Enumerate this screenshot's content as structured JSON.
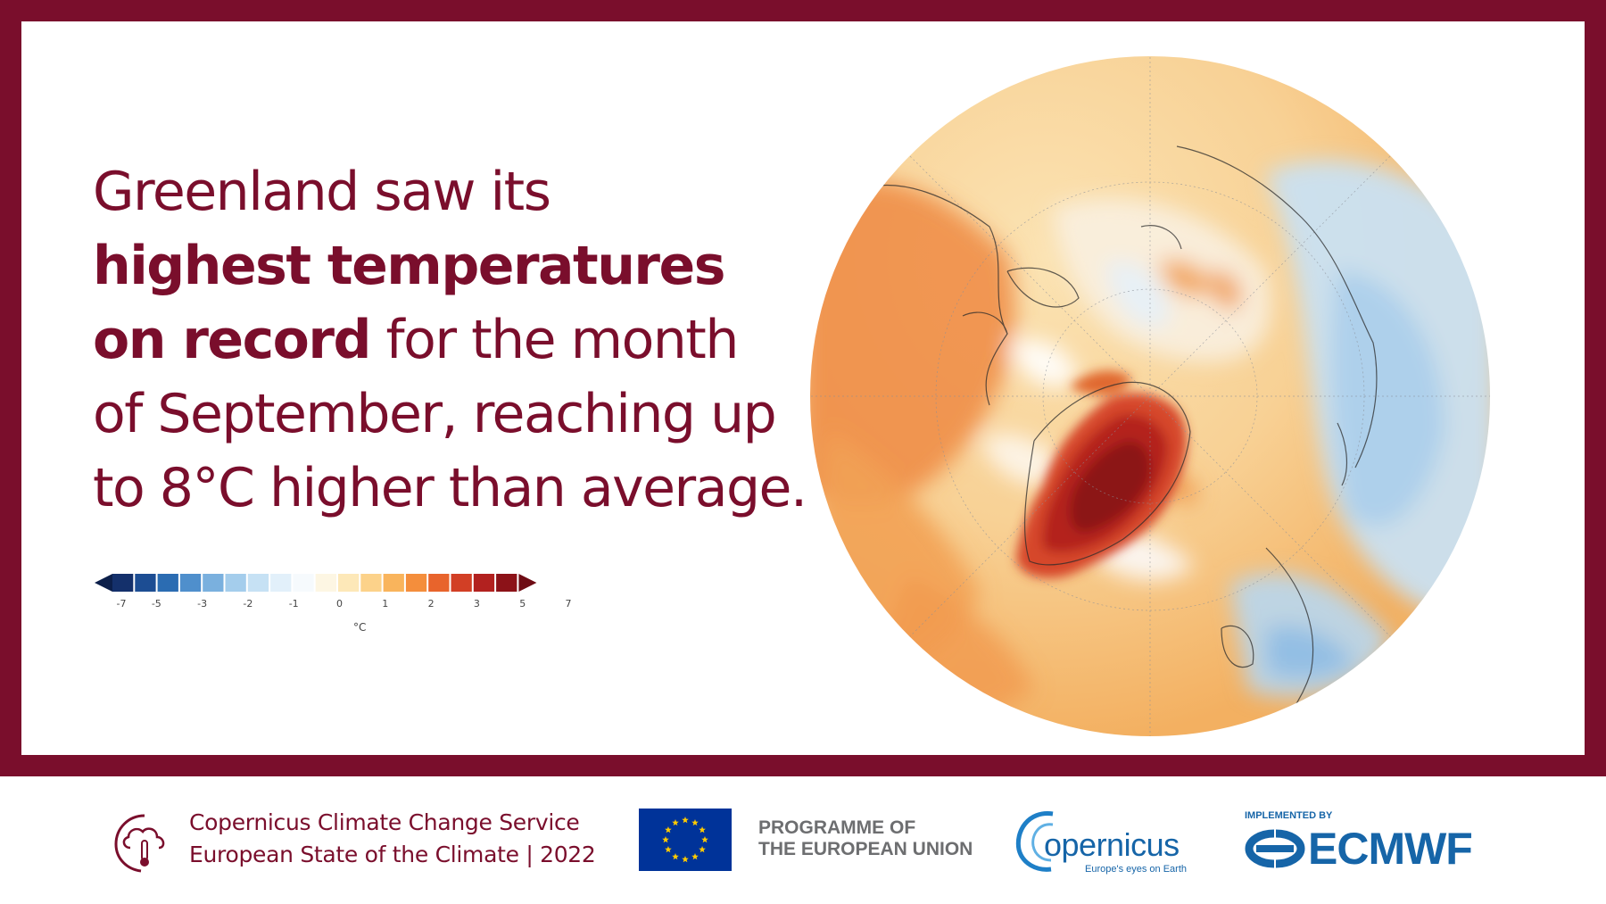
{
  "headline": {
    "line1": "Greenland saw its",
    "bold_line2": "highest temperatures",
    "bold_line3": "on record",
    "line3_rest": " for the month",
    "line4": "of September, reaching up",
    "line5": "to 8°C higher than average."
  },
  "legend": {
    "tick_labels": [
      "-7",
      "-5",
      "-3",
      "-2",
      "-1",
      "0",
      "1",
      "2",
      "3",
      "5",
      "7"
    ],
    "unit": "°C",
    "colors": [
      "#14306b",
      "#1c4d93",
      "#2b6cb2",
      "#4f8fcc",
      "#7ab0de",
      "#a4cdec",
      "#c6e1f4",
      "#e2f0fa",
      "#f6fafd",
      "#fdf6e3",
      "#fde8b8",
      "#fcd28a",
      "#f9b45c",
      "#f48e3c",
      "#e8642c",
      "#d23f25",
      "#b2211f",
      "#8c1218"
    ]
  },
  "footer": {
    "c3s_line1": "Copernicus Climate Change Service",
    "c3s_line2": "European State of the Climate | 2022",
    "programme_line1": "PROGRAMME OF",
    "programme_line2": "THE EUROPEAN UNION",
    "copernicus_word": "opernicus",
    "copernicus_tagline": "Europe's eyes on Earth",
    "implemented_by": "IMPLEMENTED BY",
    "ecmwf": "ECMWF"
  },
  "colors": {
    "brand": "#7a0e2c",
    "copernicus_blue": "#1665a8",
    "eu_blue": "#003399",
    "eu_gold": "#ffcc00"
  }
}
